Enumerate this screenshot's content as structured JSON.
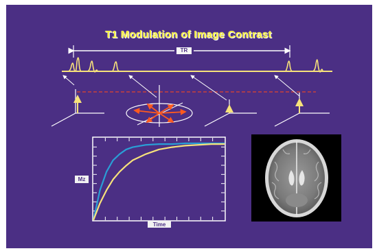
{
  "slide": {
    "title": "T1 Modulation of Image Contrast",
    "tr_label": "TR",
    "colors": {
      "background": "#4b2f84",
      "line": "#f7e27a",
      "arrows": "#ffffff",
      "spins": "#ff5a1f",
      "dashed": "#e2452a"
    }
  },
  "chart_data": {
    "type": "line",
    "title": "",
    "xlabel": "Time",
    "ylabel": "Mz",
    "xlim": [
      0,
      10
    ],
    "ylim": [
      0,
      1
    ],
    "x": [
      0,
      0.5,
      1,
      1.5,
      2,
      2.5,
      3,
      4,
      5,
      6,
      7,
      8,
      9,
      10
    ],
    "series": [
      {
        "color": "#2a9fd6",
        "values": [
          0,
          0.39,
          0.63,
          0.78,
          0.86,
          0.92,
          0.95,
          0.98,
          0.99,
          0.99,
          1.0,
          1.0,
          1.0,
          1.0
        ]
      },
      {
        "color": "#f7e27a",
        "values": [
          0,
          0.22,
          0.39,
          0.53,
          0.63,
          0.71,
          0.78,
          0.86,
          0.92,
          0.95,
          0.97,
          0.98,
          0.99,
          0.99
        ]
      }
    ],
    "grid": false
  },
  "image": {
    "name": "axial brain MRI"
  }
}
